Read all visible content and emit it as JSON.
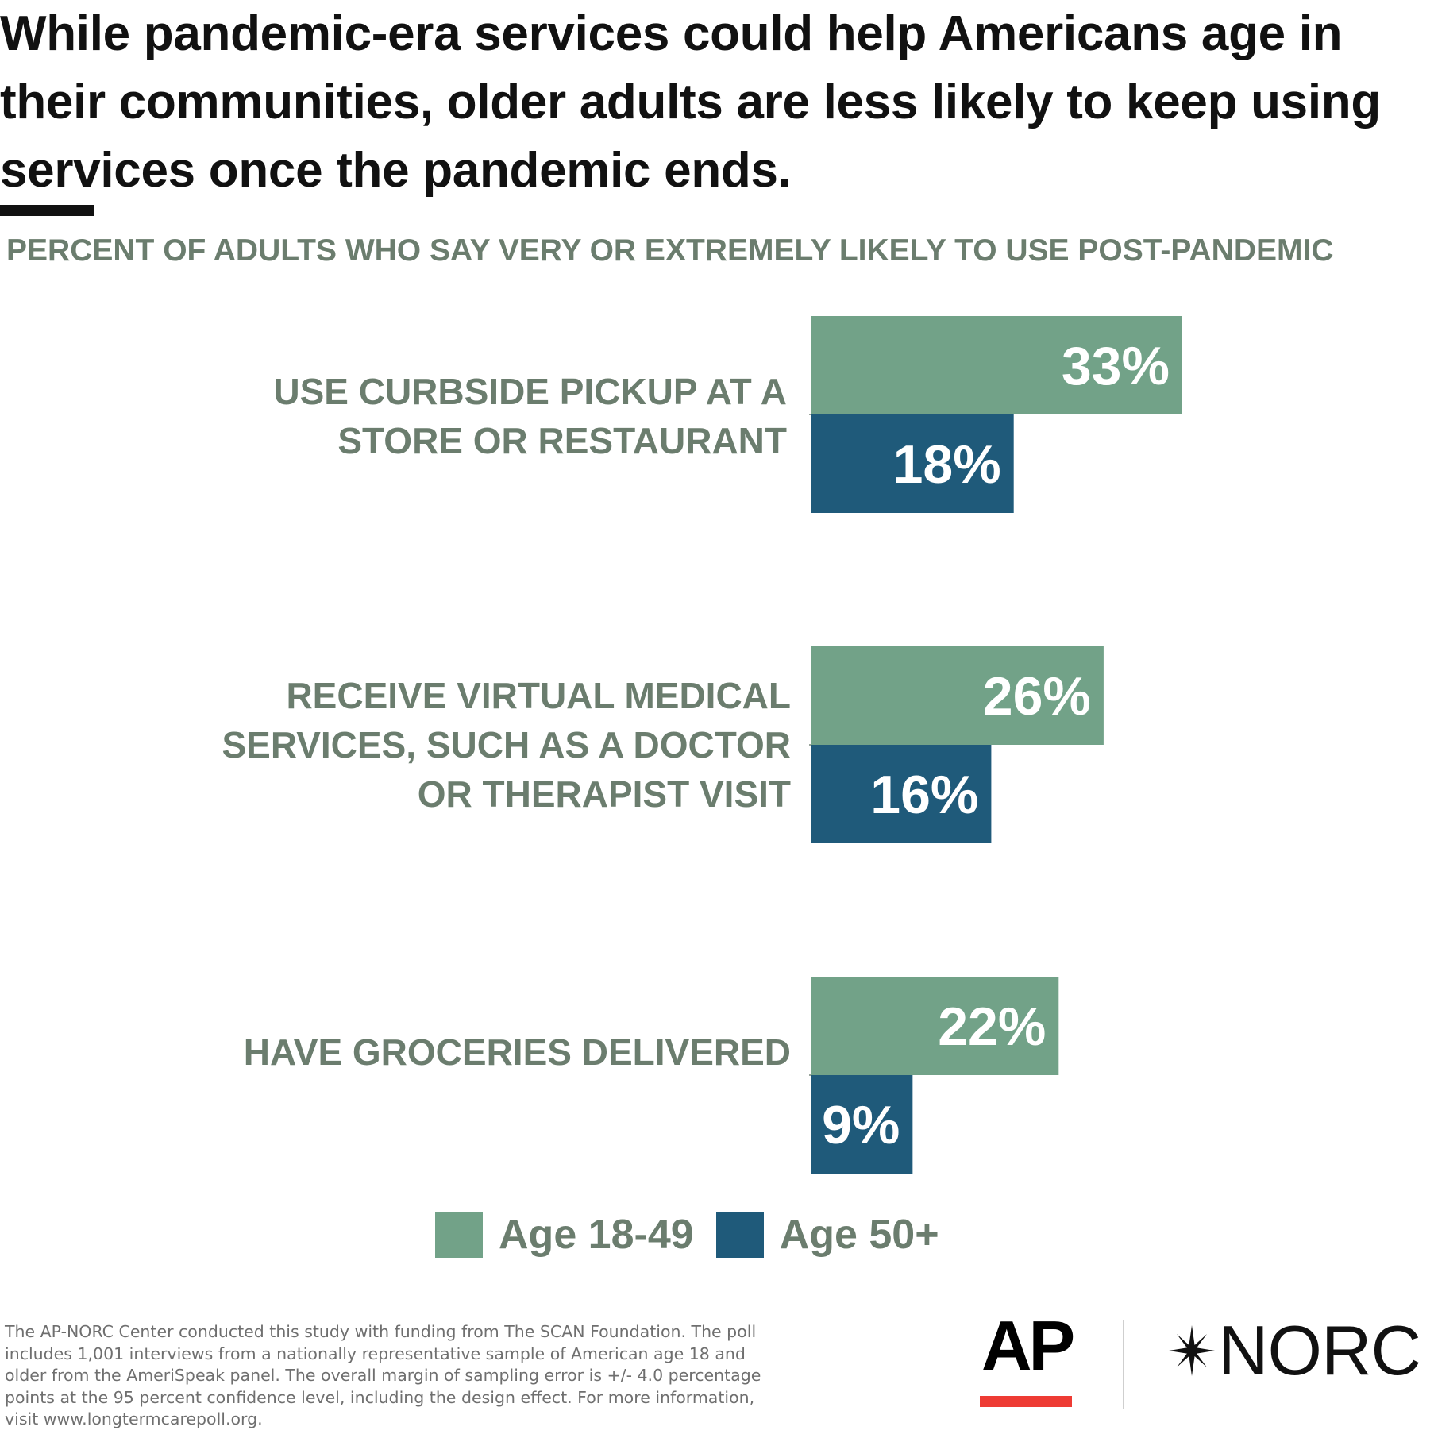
{
  "headline": "While pandemic-era services could help Americans age in their communities, older adults are less likely to keep using services once the pandemic ends.",
  "chart_data": {
    "type": "bar",
    "orientation": "horizontal",
    "title": "PERCENT OF ADULTS WHO SAY VERY OR EXTREMELY LIKELY TO USE POST-PANDEMIC",
    "categories": [
      "USE CURBSIDE PICKUP AT A STORE OR RESTAURANT",
      "RECEIVE VIRTUAL MEDICAL SERVICES, SUCH AS A DOCTOR OR THERAPIST VISIT",
      "HAVE GROCERIES DELIVERED"
    ],
    "series": [
      {
        "name": "Age 18-49",
        "color": "#72a288",
        "values": [
          33,
          26,
          22
        ]
      },
      {
        "name": "Age 50+",
        "color": "#1f5a7a",
        "values": [
          18,
          16,
          9
        ]
      }
    ],
    "value_suffix": "%",
    "data_labels": [
      [
        "33%",
        "18%"
      ],
      [
        "26%",
        "16%"
      ],
      [
        "22%",
        "9%"
      ]
    ],
    "legend": "bottom",
    "grid": false
  },
  "legend": {
    "items": [
      {
        "label": "Age 18-49",
        "color": "#72a288"
      },
      {
        "label": "Age 50+",
        "color": "#1f5a7a"
      }
    ]
  },
  "footnote": "The AP-NORC Center conducted this study with funding from The SCAN Foundation. The poll includes 1,001 interviews from a nationally representative sample of American age 18 and older from the AmeriSpeak panel. The overall margin of sampling error is +/- 4.0 percentage points at the 95 percent confidence level, including the design effect. For more information, visit www.longtermcarepoll.org.",
  "logos": {
    "ap": "AP",
    "ap_accent": "#ee3b34",
    "norc": "NORC"
  }
}
